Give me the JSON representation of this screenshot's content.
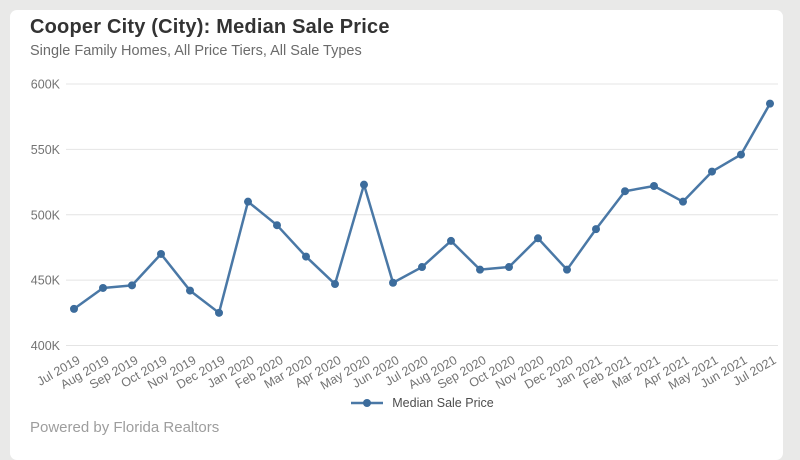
{
  "page": {
    "background": "#e9e9e8",
    "card_background": "#ffffff"
  },
  "header": {
    "title": "Cooper City (City): Median Sale Price",
    "subtitle": "Single Family Homes, All Price Tiers, All Sale Types"
  },
  "legend": {
    "label": "Median Sale Price"
  },
  "footer": {
    "text": "Powered by Florida Realtors"
  },
  "chart_data": {
    "type": "line",
    "title": "Cooper City (City): Median Sale Price",
    "subtitle": "Single Family Homes, All Price Tiers, All Sale Types",
    "categories": [
      "Jul 2019",
      "Aug 2019",
      "Sep 2019",
      "Oct 2019",
      "Nov 2019",
      "Dec 2019",
      "Jan 2020",
      "Feb 2020",
      "Mar 2020",
      "Apr 2020",
      "May 2020",
      "Jun 2020",
      "Jul 2020",
      "Aug 2020",
      "Sep 2020",
      "Oct 2020",
      "Nov 2020",
      "Dec 2020",
      "Jan 2021",
      "Feb 2021",
      "Mar 2021",
      "Apr 2021",
      "May 2021",
      "Jun 2021",
      "Jul 2021"
    ],
    "series": [
      {
        "name": "Median Sale Price",
        "unit": "K",
        "values": [
          428,
          444,
          446,
          470,
          442,
          425,
          510,
          492,
          468,
          447,
          523,
          448,
          460,
          480,
          458,
          460,
          482,
          458,
          489,
          518,
          522,
          510,
          533,
          546,
          585
        ]
      }
    ],
    "ylim": [
      400,
      600
    ],
    "ytick_labels": [
      "400K",
      "450K",
      "500K",
      "550K",
      "600K"
    ],
    "grid": "horizontal",
    "legend_position": "bottom",
    "colors": {
      "line": "#4a78a6",
      "marker": "#3c6c9c",
      "gridline": "#e4e4e4",
      "axis_text": "#737373"
    }
  }
}
